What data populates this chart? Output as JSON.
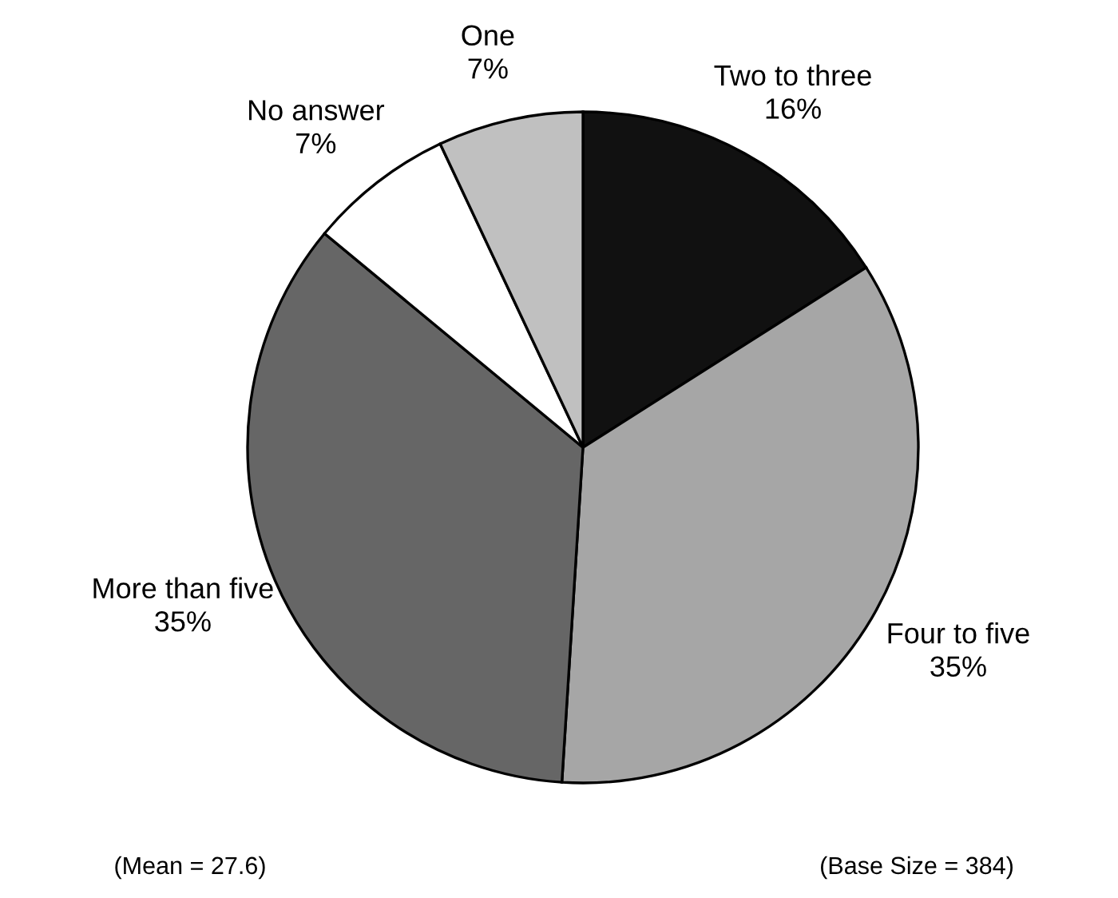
{
  "chart_data": {
    "type": "pie",
    "categories": [
      "Two to three",
      "Four to five",
      "More than five",
      "No answer",
      "One"
    ],
    "values": [
      16,
      35,
      35,
      7,
      7
    ],
    "value_labels": [
      "16%",
      "35%",
      "35%",
      "7%",
      "7%"
    ],
    "colors": [
      "#111111",
      "#a6a6a6",
      "#666666",
      "#ffffff",
      "#c0c0c0"
    ],
    "annotations": [
      "(Mean = 27.6)",
      "(Base Size = 384)"
    ]
  }
}
